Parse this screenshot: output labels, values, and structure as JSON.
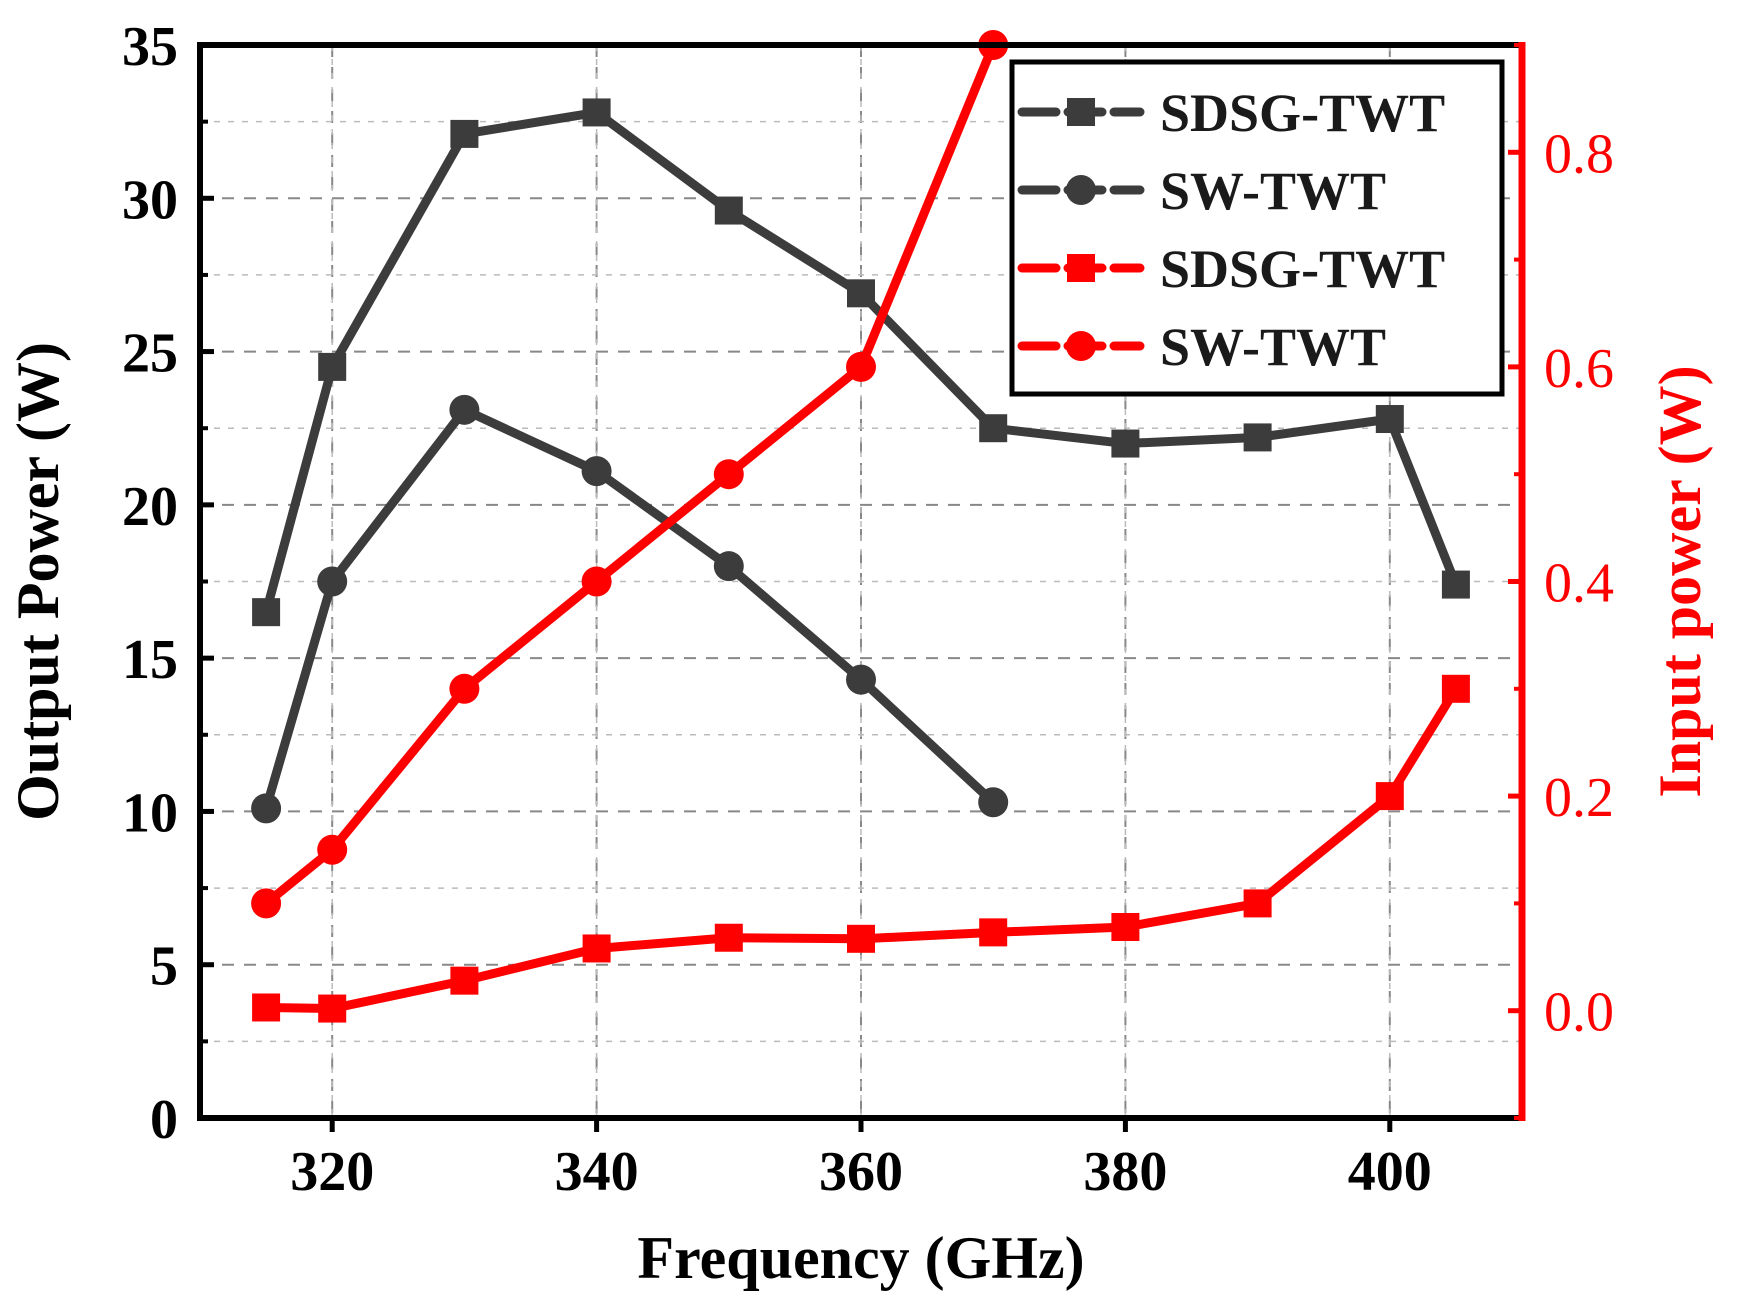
{
  "chart_data": {
    "type": "line",
    "title": "",
    "xlabel": "Frequency (GHz)",
    "ylabel": "Output Power (W)",
    "y2label": "Input power (W)",
    "xlim": [
      310,
      410
    ],
    "ylim": [
      0,
      35
    ],
    "y2lim": [
      -0.1,
      0.9
    ],
    "x_ticks": [
      320,
      340,
      360,
      380,
      400
    ],
    "y_ticks": [
      0,
      5,
      10,
      15,
      20,
      25,
      30,
      35
    ],
    "y2_ticks": [
      0.0,
      0.2,
      0.4,
      0.6,
      0.8
    ],
    "y2_tick_labels": [
      "0.0",
      "0.2",
      "0.4",
      "0.6",
      "0.8"
    ],
    "grid": true,
    "legend_position": "top-right",
    "colors": {
      "dark": "#3c3c3c",
      "red": "#ff0000",
      "axis": "#000000",
      "grid": "#888888"
    },
    "series": [
      {
        "name": "SDSG-TWT",
        "axis": "left",
        "marker": "square",
        "color": "#3c3c3c",
        "x": [
          315,
          320,
          330,
          340,
          350,
          360,
          370,
          380,
          390,
          400,
          405
        ],
        "y": [
          16.5,
          24.5,
          32.1,
          32.8,
          29.6,
          26.9,
          22.5,
          22.0,
          22.2,
          22.8,
          17.4
        ]
      },
      {
        "name": "SW-TWT",
        "axis": "left",
        "marker": "circle",
        "color": "#3c3c3c",
        "x": [
          315,
          320,
          330,
          340,
          350,
          360,
          370
        ],
        "y": [
          10.1,
          17.5,
          23.1,
          21.1,
          18.0,
          14.3,
          10.3
        ]
      },
      {
        "name": "SDSG-TWT",
        "axis": "right",
        "marker": "square",
        "color": "#ff0000",
        "x": [
          315,
          320,
          330,
          340,
          350,
          360,
          370,
          380,
          390,
          400,
          405
        ],
        "y": [
          0.003,
          0.002,
          0.028,
          0.058,
          0.068,
          0.067,
          0.073,
          0.078,
          0.1,
          0.2,
          0.3
        ]
      },
      {
        "name": "SW-TWT",
        "axis": "right",
        "marker": "circle",
        "color": "#ff0000",
        "x": [
          315,
          320,
          330,
          340,
          350,
          360,
          370
        ],
        "y": [
          0.1,
          0.15,
          0.3,
          0.4,
          0.5,
          0.6,
          0.9
        ]
      }
    ]
  }
}
